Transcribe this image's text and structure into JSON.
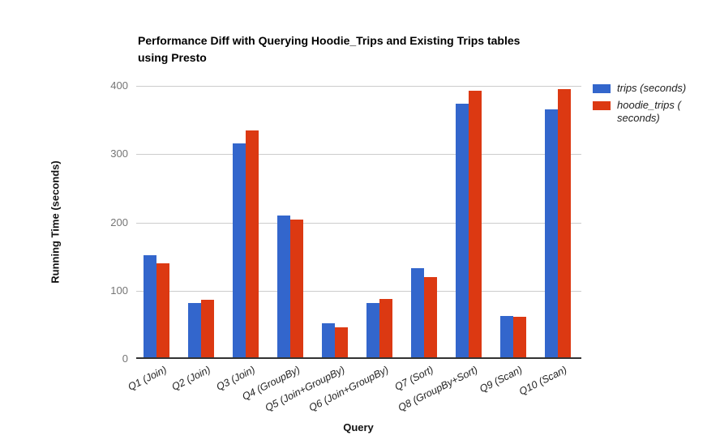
{
  "page": {
    "background": "#ffffff"
  },
  "chart_data": {
    "type": "bar",
    "title": "Performance Diff with Querying Hoodie_Trips and Existing Trips tables using Presto",
    "title_lines": [
      "Performance Diff with Querying Hoodie_Trips and Existing Trips tables",
      "using Presto"
    ],
    "xlabel": "Query",
    "ylabel": "Running Time (seconds)",
    "categories": [
      "Q1 (Join)",
      "Q2 (Join)",
      "Q3 (Join)",
      "Q4 (GroupBy)",
      "Q5 (Join+GroupBy)",
      "Q6 (Join+GroupBy)",
      "Q7 (Sort)",
      "Q8 (GroupBy+Sort)",
      "Q9 (Scan)",
      "Q10 (Scan)"
    ],
    "series": [
      {
        "name": "trips (seconds)",
        "legend_lines": [
          "trips (seconds)"
        ],
        "color": "#3366cc",
        "values": [
          150,
          80,
          313,
          208,
          50,
          80,
          131,
          371,
          60,
          363
        ]
      },
      {
        "name": "hoodie_trips ( seconds)",
        "legend_lines": [
          "hoodie_trips (",
          "seconds)"
        ],
        "color": "#dc3912",
        "values": [
          138,
          84,
          332,
          202,
          44,
          85,
          117,
          390,
          59,
          393
        ]
      }
    ],
    "ylim": [
      0,
      400
    ],
    "yticks": [
      0,
      100,
      200,
      300,
      400
    ],
    "grid": true,
    "legend_position": "right",
    "axis_color": "#333333",
    "gridline_color": "#cccccc",
    "tick_label_color": "#757575"
  }
}
